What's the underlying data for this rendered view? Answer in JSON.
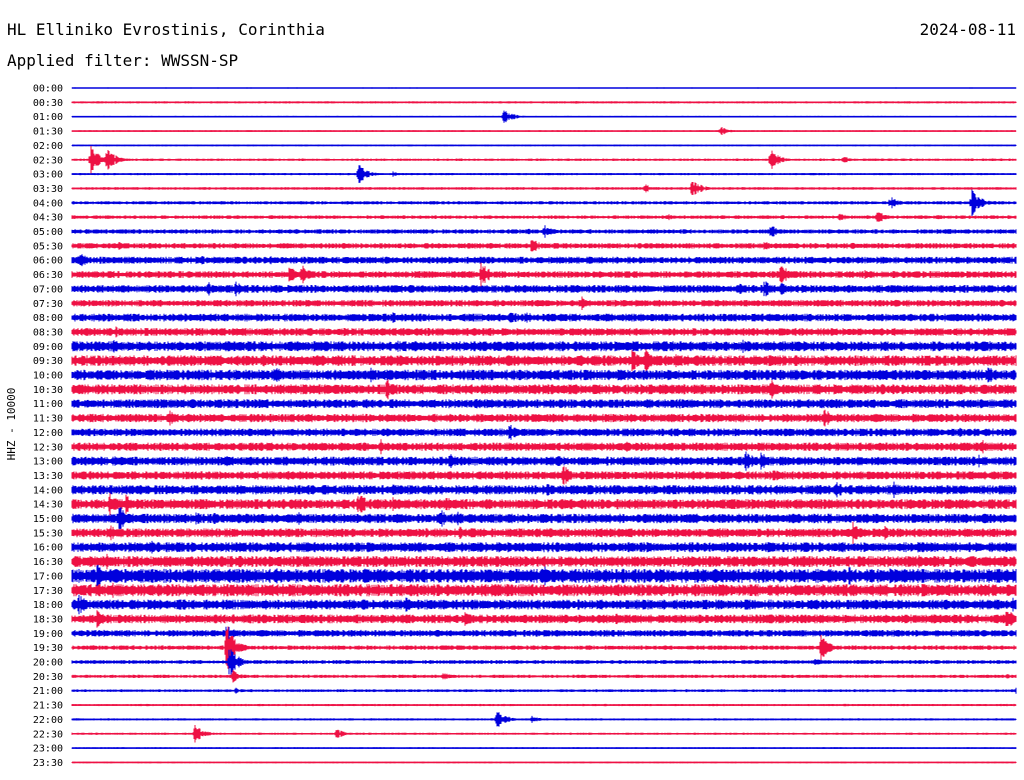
{
  "header": {
    "station": "HL Elliniko Evrostinis, Corinthia",
    "date": "2024-08-11",
    "filter": "Applied filter: WWSSN-SP"
  },
  "colors": {
    "even_trace": "#0000dd",
    "odd_trace": "#ee1144",
    "background": "#ffffff"
  },
  "chart_data": {
    "type": "line",
    "chart_kind": "helicorder",
    "ylabel": "HHZ - 10000",
    "row_labels": [
      "00:00",
      "00:30",
      "01:00",
      "01:30",
      "02:00",
      "02:30",
      "03:00",
      "03:30",
      "04:00",
      "04:30",
      "05:00",
      "05:30",
      "06:00",
      "06:30",
      "07:00",
      "07:30",
      "08:00",
      "08:30",
      "09:00",
      "09:30",
      "10:00",
      "10:30",
      "11:00",
      "11:30",
      "12:00",
      "12:30",
      "13:00",
      "13:30",
      "14:00",
      "14:30",
      "15:00",
      "15:30",
      "16:00",
      "16:30",
      "17:00",
      "17:30",
      "18:00",
      "18:30",
      "19:00",
      "19:30",
      "20:00",
      "20:30",
      "21:00",
      "21:30",
      "22:00",
      "22:30",
      "23:00",
      "23:30"
    ],
    "row_duration_minutes": 30,
    "background_noise": [
      0.4,
      0.8,
      0.6,
      0.6,
      0.6,
      0.9,
      0.8,
      1.0,
      1.2,
      1.3,
      1.6,
      2.0,
      2.5,
      2.5,
      2.8,
      2.4,
      2.8,
      2.8,
      3.6,
      3.8,
      3.8,
      3.6,
      3.2,
      3.0,
      2.8,
      3.0,
      3.2,
      3.0,
      3.4,
      3.6,
      3.4,
      3.2,
      3.6,
      4.0,
      5.0,
      4.4,
      3.6,
      3.2,
      2.4,
      1.6,
      1.4,
      1.2,
      1.0,
      0.8,
      0.8,
      0.8,
      0.6,
      0.6
    ],
    "events": [
      [],
      [
        [
          16.0,
          1.5
        ],
        [
          16.9,
          1.5
        ]
      ],
      [
        [
          13.7,
          9
        ]
      ],
      [
        [
          20.6,
          5
        ]
      ],
      [],
      [
        [
          0.6,
          14
        ],
        [
          1.1,
          12
        ],
        [
          22.2,
          11
        ],
        [
          24.5,
          4
        ],
        [
          29.5,
          2
        ]
      ],
      [
        [
          9.1,
          12
        ],
        [
          10.2,
          3
        ]
      ],
      [
        [
          19.7,
          10
        ],
        [
          18.2,
          5
        ]
      ],
      [
        [
          18.1,
          3
        ],
        [
          26.0,
          7
        ],
        [
          28.6,
          14
        ]
      ],
      [
        [
          18.9,
          4
        ],
        [
          24.4,
          5
        ],
        [
          25.6,
          8
        ],
        [
          27.5,
          3
        ]
      ],
      [
        [
          14.5,
          4
        ],
        [
          15.0,
          8
        ],
        [
          22.2,
          8
        ],
        [
          27.8,
          4
        ],
        [
          30.2,
          4
        ]
      ],
      [
        [
          1.5,
          5
        ],
        [
          14.6,
          9
        ],
        [
          22.0,
          6
        ],
        [
          24.8,
          4
        ],
        [
          30.9,
          9
        ]
      ],
      [
        [
          0.2,
          10
        ],
        [
          4.1,
          6
        ],
        [
          5.2,
          5
        ],
        [
          6.3,
          6
        ]
      ],
      [
        [
          6.9,
          10
        ],
        [
          7.3,
          14
        ],
        [
          13.0,
          14
        ],
        [
          22.5,
          12
        ],
        [
          25.2,
          6
        ],
        [
          28.6,
          4
        ]
      ],
      [
        [
          4.3,
          9
        ],
        [
          5.2,
          8
        ],
        [
          7.1,
          5
        ],
        [
          21.2,
          7
        ],
        [
          22.0,
          10
        ],
        [
          22.5,
          8
        ]
      ],
      [
        [
          16.2,
          7
        ],
        [
          17.3,
          3
        ]
      ],
      [
        [
          10.2,
          7
        ],
        [
          13.9,
          10
        ],
        [
          14.4,
          8
        ]
      ],
      [
        [
          1.1,
          4
        ],
        [
          1.4,
          6
        ],
        [
          11.1,
          4
        ],
        [
          23.2,
          3
        ]
      ],
      [
        [
          1.3,
          9
        ],
        [
          2.4,
          6
        ],
        [
          10.3,
          8
        ],
        [
          10.8,
          7
        ],
        [
          13.6,
          6
        ],
        [
          21.3,
          8
        ],
        [
          22.5,
          7
        ]
      ],
      [
        [
          6.1,
          7
        ],
        [
          17.8,
          12
        ],
        [
          18.2,
          14
        ],
        [
          19.2,
          9
        ],
        [
          19.8,
          8
        ],
        [
          21.5,
          5
        ]
      ],
      [
        [
          6.4,
          12
        ],
        [
          9.5,
          8
        ],
        [
          9.9,
          6
        ],
        [
          25.0,
          5
        ],
        [
          29.1,
          10
        ]
      ],
      [
        [
          2.0,
          5
        ],
        [
          10.0,
          12
        ],
        [
          20.0,
          6
        ],
        [
          22.2,
          11
        ]
      ],
      [
        [
          12.8,
          7
        ],
        [
          13.3,
          5
        ],
        [
          19.3,
          6
        ],
        [
          23.7,
          4
        ],
        [
          28.9,
          6
        ]
      ],
      [
        [
          3.1,
          8
        ],
        [
          3.6,
          6
        ],
        [
          23.9,
          11
        ],
        [
          29.1,
          4
        ]
      ],
      [
        [
          13.9,
          10
        ],
        [
          28.2,
          5
        ],
        [
          29.0,
          4
        ]
      ],
      [
        [
          2.5,
          4
        ],
        [
          9.8,
          8
        ],
        [
          17.6,
          6
        ],
        [
          24.0,
          4
        ],
        [
          28.9,
          8
        ],
        [
          29.6,
          4
        ]
      ],
      [
        [
          0.4,
          7
        ],
        [
          1.3,
          6
        ],
        [
          2.0,
          5
        ],
        [
          4.9,
          6
        ],
        [
          12.0,
          9
        ],
        [
          15.4,
          8
        ],
        [
          21.4,
          12
        ],
        [
          21.9,
          10
        ],
        [
          28.8,
          7
        ]
      ],
      [
        [
          2.3,
          3
        ],
        [
          15.6,
          12
        ],
        [
          22.3,
          8
        ],
        [
          29.3,
          4
        ]
      ],
      [
        [
          10.2,
          7
        ],
        [
          15.1,
          8
        ],
        [
          23.6,
          6
        ],
        [
          24.3,
          10
        ],
        [
          25.3,
          8
        ],
        [
          26.1,
          9
        ],
        [
          28.0,
          4
        ]
      ],
      [
        [
          1.2,
          14
        ],
        [
          1.7,
          11
        ],
        [
          9.1,
          14
        ],
        [
          10.2,
          11
        ],
        [
          11.9,
          12
        ],
        [
          13.1,
          5
        ],
        [
          20.9,
          8
        ],
        [
          21.6,
          7
        ],
        [
          29.1,
          6
        ],
        [
          31.0,
          8
        ]
      ],
      [
        [
          1.5,
          14
        ],
        [
          3.9,
          8
        ],
        [
          4.5,
          7
        ],
        [
          7.2,
          7
        ],
        [
          11.7,
          10
        ],
        [
          12.2,
          9
        ]
      ],
      [
        [
          1.2,
          10
        ],
        [
          12.3,
          8
        ],
        [
          17.6,
          5
        ],
        [
          20.6,
          6
        ],
        [
          23.5,
          5
        ],
        [
          24.8,
          12
        ],
        [
          25.8,
          8
        ]
      ],
      [
        [
          2.5,
          8
        ],
        [
          3.0,
          5
        ],
        [
          7.7,
          9
        ],
        [
          9.4,
          7
        ],
        [
          24.5,
          4
        ],
        [
          26.9,
          8
        ],
        [
          28.3,
          4
        ]
      ],
      [
        [
          0.5,
          8
        ],
        [
          1.1,
          9
        ],
        [
          23.5,
          6
        ],
        [
          26.8,
          10
        ],
        [
          28.1,
          6
        ]
      ],
      [
        [
          0.8,
          13
        ],
        [
          1.3,
          11
        ],
        [
          4.3,
          8
        ],
        [
          6.5,
          9
        ],
        [
          9.3,
          10
        ],
        [
          15.0,
          12
        ],
        [
          17.5,
          8
        ],
        [
          24.7,
          10
        ],
        [
          25.9,
          11
        ],
        [
          31.3,
          10
        ]
      ],
      [
        [
          0.8,
          9
        ],
        [
          1.3,
          8
        ],
        [
          8.5,
          6
        ],
        [
          15.4,
          7
        ],
        [
          24.8,
          6
        ],
        [
          29.9,
          6
        ]
      ],
      [
        [
          0.2,
          12
        ],
        [
          7.6,
          7
        ],
        [
          10.6,
          8
        ],
        [
          13.1,
          6
        ],
        [
          16.7,
          5
        ],
        [
          20.4,
          4
        ],
        [
          29.9,
          8
        ],
        [
          31.8,
          10
        ]
      ],
      [
        [
          0.8,
          10
        ],
        [
          7.3,
          7
        ],
        [
          12.5,
          9
        ],
        [
          17.3,
          8
        ],
        [
          25.6,
          5
        ],
        [
          29.7,
          11
        ],
        [
          30.5,
          8
        ]
      ],
      [
        [
          4.9,
          9
        ],
        [
          25.6,
          5
        ],
        [
          30.4,
          5
        ],
        [
          31.6,
          6
        ]
      ],
      [
        [
          4.9,
          26
        ],
        [
          23.8,
          14
        ]
      ],
      [
        [
          5.0,
          16
        ],
        [
          23.6,
          4
        ]
      ],
      [
        [
          5.1,
          7
        ],
        [
          11.8,
          4
        ],
        [
          29.7,
          3
        ]
      ],
      [
        [
          5.2,
          3
        ],
        [
          30.0,
          5
        ]
      ],
      [],
      [
        [
          13.5,
          10
        ],
        [
          14.6,
          4
        ]
      ],
      [
        [
          3.9,
          10
        ],
        [
          8.4,
          5
        ]
      ],
      [],
      []
    ]
  }
}
